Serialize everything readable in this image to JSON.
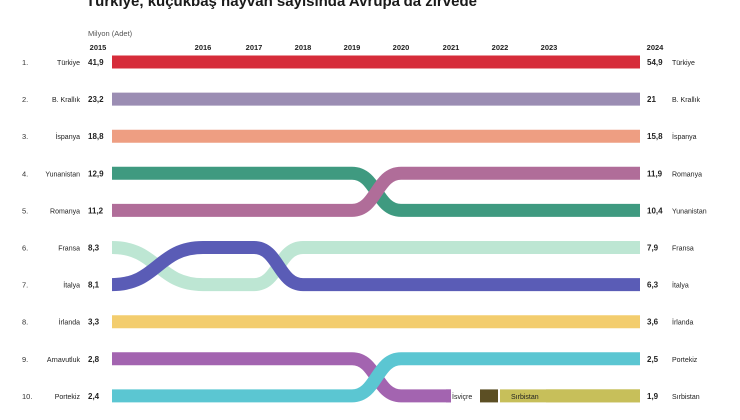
{
  "chart_data": {
    "type": "bump",
    "title": "Türkiye, küçükbaş hayvan sayısında Avrupa'da zirvede",
    "unit_label": "Milyon (Adet)",
    "years": [
      "2015",
      "2016",
      "2017",
      "2018",
      "2019",
      "2020",
      "2021",
      "2022",
      "2023",
      "2024"
    ],
    "ranks_left": [
      "1.",
      "2.",
      "3.",
      "4.",
      "5.",
      "6.",
      "7.",
      "8.",
      "9.",
      "10."
    ],
    "left": [
      {
        "country": "Türkiye",
        "value": "41,9"
      },
      {
        "country": "B. Krallık",
        "value": "23,2"
      },
      {
        "country": "İspanya",
        "value": "18,8"
      },
      {
        "country": "Yunanistan",
        "value": "12,9"
      },
      {
        "country": "Romanya",
        "value": "11,2"
      },
      {
        "country": "Fransa",
        "value": "8,3"
      },
      {
        "country": "İtalya",
        "value": "8,1"
      },
      {
        "country": "İrlanda",
        "value": "3,3"
      },
      {
        "country": "Arnavutluk",
        "value": "2,8"
      },
      {
        "country": "Portekiz",
        "value": "2,4"
      }
    ],
    "right": [
      {
        "country": "Türkiye",
        "value": "54,9"
      },
      {
        "country": "B. Krallık",
        "value": "21"
      },
      {
        "country": "İspanya",
        "value": "15,8"
      },
      {
        "country": "Romanya",
        "value": "11,9"
      },
      {
        "country": "Yunanistan",
        "value": "10,4"
      },
      {
        "country": "Fransa",
        "value": "7,9"
      },
      {
        "country": "İtalya",
        "value": "6,3"
      },
      {
        "country": "İrlanda",
        "value": "3,6"
      },
      {
        "country": "Portekiz",
        "value": "2,5"
      },
      {
        "country": "Sırbistan",
        "value": "1,9"
      }
    ],
    "series": [
      {
        "key": "turkiye",
        "color": "#d62c3a",
        "ranks": [
          1,
          1,
          1,
          1,
          1,
          1,
          1,
          1,
          1,
          1
        ]
      },
      {
        "key": "b-krallik",
        "color": "#9b8db3",
        "ranks": [
          2,
          2,
          2,
          2,
          2,
          2,
          2,
          2,
          2,
          2
        ]
      },
      {
        "key": "ispanya",
        "color": "#ee9e82",
        "ranks": [
          3,
          3,
          3,
          3,
          3,
          3,
          3,
          3,
          3,
          3
        ]
      },
      {
        "key": "yunanistan",
        "color": "#3f9a80",
        "ranks": [
          4,
          4,
          4,
          4,
          4,
          5,
          5,
          5,
          5,
          5
        ]
      },
      {
        "key": "romanya",
        "color": "#b06d99",
        "ranks": [
          5,
          5,
          5,
          5,
          5,
          4,
          4,
          4,
          4,
          4
        ]
      },
      {
        "key": "fransa",
        "color": "#bde6d3",
        "ranks": [
          6,
          7,
          7,
          6,
          6,
          6,
          6,
          6,
          6,
          6
        ]
      },
      {
        "key": "italya",
        "color": "#5a5cb6",
        "ranks": [
          7,
          6,
          6,
          7,
          7,
          7,
          7,
          7,
          7,
          7
        ]
      },
      {
        "key": "irlanda",
        "color": "#f3cd6e",
        "ranks": [
          8,
          8,
          8,
          8,
          8,
          8,
          8,
          8,
          8,
          8
        ]
      },
      {
        "key": "arnavutluk",
        "color": "#a364b0",
        "ranks": [
          9,
          9,
          9,
          9,
          9,
          10,
          10
        ],
        "end_label": "İsviçre",
        "end_color": "#5c4f24"
      },
      {
        "key": "portekiz",
        "color": "#5bc6d2",
        "ranks": [
          10,
          10,
          10,
          10,
          10,
          9,
          9,
          9,
          9,
          9
        ]
      },
      {
        "key": "sirbistan",
        "color": "#c7bf5a",
        "ranks": [
          null,
          null,
          null,
          null,
          null,
          null,
          null,
          10,
          10,
          10
        ],
        "start_label": "Sırbistan"
      }
    ]
  }
}
